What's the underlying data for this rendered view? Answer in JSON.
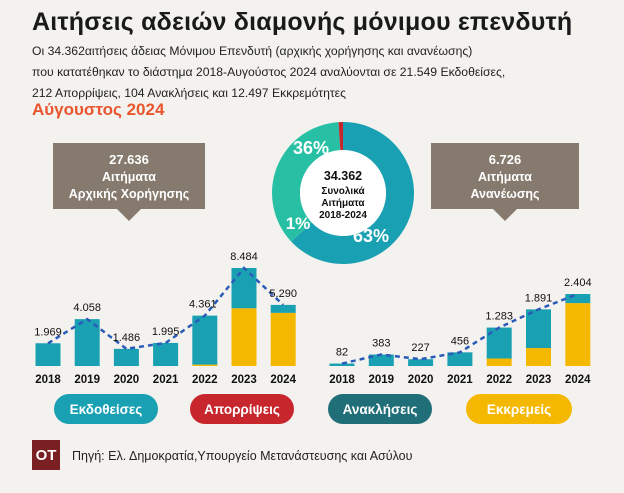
{
  "title": "Αιτήσεις αδειών διαμονής μόνιμου επενδυτή",
  "subtitle_lines": [
    "Οι 34.362αιτήσεις άδειας Μόνιμου Επενδυτή (αρχικής χορήγησης και ανανέωσης)",
    "που κατατέθηκαν το διάστημα 2018-Αυγούστος 2024 αναλύονται σε 21.549 Εκδοθείσες,",
    "212 Απορρίψεις, 104 Ανακλήσεις και 12.497 Εκκρεμότητες"
  ],
  "date": "Αύγουστος 2024",
  "colors": {
    "issued": "#1aa0b3",
    "rejected": "#c8262d",
    "revoked": "#1f6e78",
    "pending": "#f5b800",
    "trend": "#2a5bb8",
    "box": "#857a6d",
    "donut_dark": "#1aa0b3",
    "donut_light": "#28c0a4"
  },
  "left_box": {
    "value": "27.636",
    "line1": "Αιτήματα",
    "line2": "Αρχικής Χορήγησης"
  },
  "right_box": {
    "value": "6.726",
    "line1": "Αιτήματα",
    "line2": "Ανανέωσης"
  },
  "donut": {
    "center_value": "34.362",
    "center_line1": "Συνολικά",
    "center_line2": "Αιτήματα",
    "center_line3": "2018-2024",
    "segments": [
      {
        "label": "63%",
        "value": 63
      },
      {
        "label": "36%",
        "value": 36
      },
      {
        "label": "1%",
        "value": 1
      }
    ]
  },
  "legend": [
    {
      "label": "Εκδοθείσες",
      "color": "#1aa0b3"
    },
    {
      "label": "Απορρίψεις",
      "color": "#c8262d"
    },
    {
      "label": "Ανακλήσεις",
      "color": "#1f6e78"
    },
    {
      "label": "Εκκρεμείς",
      "color": "#f5b800"
    }
  ],
  "chart_data": [
    {
      "type": "bar",
      "title": "27.636 Αιτήματα Αρχικής Χορήγησης",
      "categories": [
        "2018",
        "2019",
        "2020",
        "2021",
        "2022",
        "2023",
        "2024"
      ],
      "totals": [
        "1.969",
        "4.058",
        "1.486",
        "1.995",
        "4.361",
        "8.484",
        "5.290"
      ],
      "total_values": [
        1969,
        4058,
        1486,
        1995,
        4361,
        8484,
        5290
      ],
      "series": [
        {
          "name": "Εκκρεμείς",
          "values": [
            0,
            0,
            0,
            0,
            120,
            5000,
            4600
          ]
        },
        {
          "name": "Ανακλήσεις",
          "values": [
            0,
            0,
            0,
            0,
            0,
            0,
            0
          ]
        },
        {
          "name": "Απορρίψεις",
          "values": [
            0,
            0,
            0,
            0,
            0,
            0,
            0
          ]
        },
        {
          "name": "Εκδοθείσες",
          "values": [
            1969,
            4058,
            1486,
            1995,
            4241,
            3484,
            690
          ]
        }
      ],
      "ylim": [
        0,
        8484
      ]
    },
    {
      "type": "bar",
      "title": "6.726 Αιτήματα Ανανέωσης",
      "categories": [
        "2018",
        "2019",
        "2020",
        "2021",
        "2022",
        "2023",
        "2024"
      ],
      "totals": [
        "82",
        "383",
        "227",
        "456",
        "1.283",
        "1.891",
        "2.404"
      ],
      "total_values": [
        82,
        383,
        227,
        456,
        1283,
        1891,
        2404
      ],
      "series": [
        {
          "name": "Εκκρεμείς",
          "values": [
            0,
            0,
            0,
            0,
            250,
            600,
            2100
          ]
        },
        {
          "name": "Ανακλήσεις",
          "values": [
            0,
            0,
            0,
            0,
            0,
            0,
            0
          ]
        },
        {
          "name": "Απορρίψεις",
          "values": [
            0,
            0,
            0,
            0,
            0,
            0,
            0
          ]
        },
        {
          "name": "Εκδοθείσες",
          "values": [
            82,
            383,
            227,
            456,
            1033,
            1291,
            304
          ]
        }
      ],
      "ylim": [
        0,
        2404
      ]
    }
  ],
  "footer": {
    "logo": "OT",
    "source": "Πηγή: Ελ. Δημοκρατία,Υπουργείο Μετανάστευσης και Ασύλου"
  }
}
